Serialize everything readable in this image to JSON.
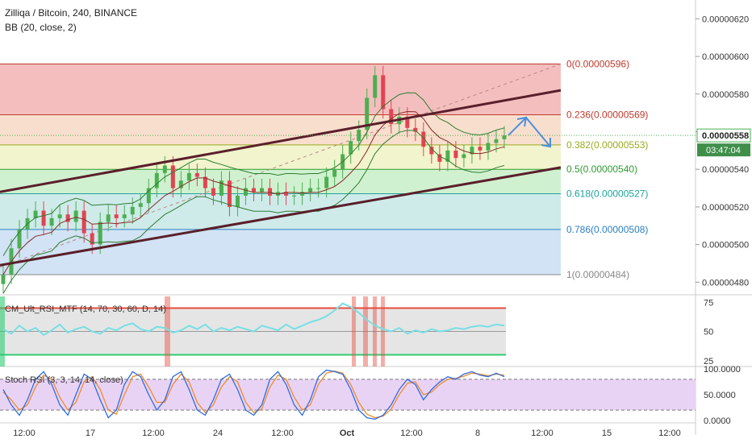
{
  "header": {
    "symbol_line": "Zilliqa / Bitcoin, 240, BINANCE",
    "indicator_line": "BB (20, close, 2)"
  },
  "colors": {
    "fib_0": "#f2b3b3",
    "fib_0236": "#f7d9c4",
    "fib_0382": "#eef2c4",
    "fib_05": "#c8efc8",
    "fib_0618": "#c5e8e6",
    "fib_0786": "#c9def2",
    "fib_1": "#e1e1e1",
    "up_candle": "#4caf50",
    "down_candle": "#e0454f",
    "channel": "#5a1f2a",
    "bb": "#2e7d32",
    "forecast_arrow": "#4a8fe0",
    "rsi_line": "#78dfe4",
    "stoch_k": "#2d6de0",
    "stoch_d": "#f28b2a"
  },
  "price_chart": {
    "y_axis_ticks": [
      "0.00000620",
      "0.00000600",
      "0.00000580",
      "0.00000560",
      "0.00000540",
      "0.00000520",
      "0.00000500",
      "0.00000480"
    ],
    "ylim": [
      4.75e-06,
      6.3e-06
    ],
    "current_price_label": "0.00000558",
    "countdown_label": "03:47:04",
    "fib_levels": [
      {
        "ratio": 0,
        "label": "0(0.00000596)",
        "price": 5.96e-06
      },
      {
        "ratio": 0.236,
        "label": "0.236(0.00000569)",
        "price": 5.69e-06
      },
      {
        "ratio": 0.382,
        "label": "0.382(0.00000553)",
        "price": 5.53e-06
      },
      {
        "ratio": 0.5,
        "label": "0.5(0.00000540)",
        "price": 5.4e-06
      },
      {
        "ratio": 0.618,
        "label": "0.618(0.00000527)",
        "price": 5.27e-06
      },
      {
        "ratio": 0.786,
        "label": "0.786(0.00000508)",
        "price": 5.08e-06
      },
      {
        "ratio": 1,
        "label": "1(0.00000484)",
        "price": 4.84e-06
      }
    ]
  },
  "chart_data": {
    "type": "line",
    "series": [
      {
        "values": [
          4.84e-06,
          4.98e-06,
          5.08e-06,
          5.14e-06,
          5.18e-06,
          5.1e-06,
          5.14e-06,
          5.16e-06,
          5.12e-06,
          5.18e-06,
          5.06e-06,
          5e-06,
          5.12e-06,
          5.16e-06,
          5.14e-06,
          5.16e-06,
          5.2e-06,
          5.22e-06,
          5.3e-06,
          5.38e-06,
          5.42e-06,
          5.3e-06,
          5.34e-06,
          5.38e-06,
          5.36e-06,
          5.3e-06,
          5.26e-06,
          5.34e-06,
          5.2e-06,
          5.26e-06,
          5.3e-06,
          5.28e-06,
          5.3e-06,
          5.26e-06,
          5.28e-06,
          5.26e-06,
          5.26e-06,
          5.28e-06,
          5.3e-06,
          5.3e-06,
          5.36e-06,
          5.4e-06,
          5.48e-06,
          5.55e-06,
          5.61e-06,
          5.78e-06,
          5.9e-06,
          5.72e-06,
          5.64e-06,
          5.68e-06,
          5.62e-06,
          5.6e-06,
          5.52e-06,
          5.48e-06,
          5.44e-06,
          5.5e-06,
          5.46e-06,
          5.48e-06,
          5.52e-06,
          5.5e-06,
          5.54e-06,
          5.56e-06,
          5.58e-06
        ]
      }
    ],
    "x_axis_labels": [
      "12:00",
      "17",
      "12:00",
      "24",
      "12:00",
      "Oct",
      "12:00",
      "8",
      "12:00",
      "15",
      "12:00"
    ],
    "panels": [
      {
        "name": "CM_Ult_RSI_MTF",
        "label": "CM_Ult_RSI_MTF (14, 70, 30, 60, D, 14)",
        "y_ticks": [
          "75",
          "50",
          "25"
        ],
        "ylim": [
          20,
          80
        ],
        "overbought": 70,
        "oversold": 30,
        "values": [
          52,
          48,
          55,
          50,
          53,
          47,
          51,
          56,
          49,
          52,
          54,
          50,
          48,
          53,
          51,
          55,
          57,
          52,
          50,
          54,
          53,
          49,
          51,
          55,
          52,
          56,
          50,
          53,
          51,
          54,
          52,
          50,
          55,
          53,
          51,
          56,
          52,
          55,
          58,
          60,
          63,
          68,
          74,
          71,
          66,
          60,
          55,
          52,
          50,
          53,
          48,
          51,
          49,
          52,
          50,
          51,
          53,
          52,
          54,
          55,
          54,
          56,
          55
        ]
      },
      {
        "name": "Stoch RSI",
        "label": "Stoch RSI (3, 3, 14, 14, close)",
        "y_ticks": [
          "100.0000",
          "50.0000",
          "0.0000"
        ],
        "ylim": [
          -5,
          105
        ],
        "upper": 80,
        "lower": 20,
        "k_values": [
          60,
          30,
          10,
          40,
          80,
          95,
          70,
          30,
          10,
          50,
          90,
          80,
          40,
          5,
          20,
          70,
          95,
          85,
          50,
          20,
          40,
          85,
          95,
          60,
          20,
          10,
          40,
          80,
          90,
          60,
          20,
          10,
          30,
          80,
          95,
          70,
          30,
          10,
          40,
          85,
          98,
          95,
          90,
          60,
          20,
          5,
          2,
          10,
          30,
          60,
          80,
          70,
          40,
          60,
          75,
          85,
          80,
          90,
          95,
          88,
          85,
          92,
          85
        ],
        "d_values": [
          55,
          40,
          20,
          30,
          65,
          88,
          80,
          45,
          20,
          35,
          75,
          85,
          60,
          20,
          12,
          50,
          85,
          90,
          65,
          35,
          35,
          70,
          90,
          75,
          35,
          15,
          30,
          65,
          85,
          75,
          35,
          15,
          22,
          65,
          88,
          80,
          45,
          20,
          30,
          70,
          92,
          96,
          92,
          70,
          35,
          12,
          5,
          8,
          22,
          50,
          72,
          75,
          50,
          55,
          70,
          80,
          82,
          86,
          92,
          90,
          87,
          90,
          88
        ]
      }
    ]
  }
}
